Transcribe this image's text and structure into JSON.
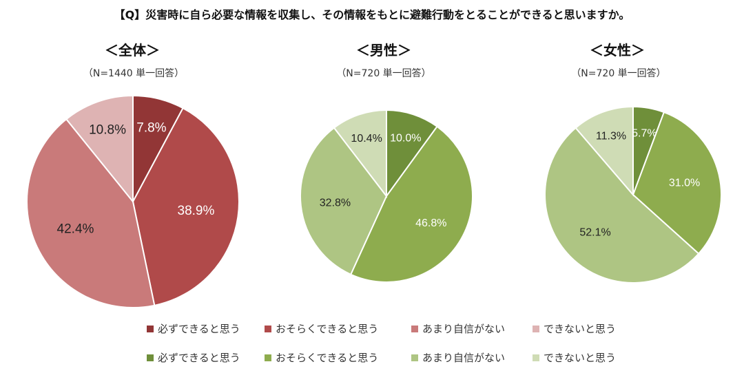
{
  "question": "【Q】災害時に自ら必要な情報を収集し、その情報をもとに避難行動をとることができると思いますか。",
  "chart_data": [
    {
      "type": "pie",
      "title": "＜全体＞",
      "subtitle": "（N=1440 単一回答）",
      "categories": [
        "必ずできると思う",
        "おそらくできると思う",
        "あまり自信がない",
        "できないと思う"
      ],
      "values": [
        7.8,
        38.9,
        42.4,
        10.8
      ],
      "labels": [
        "7.8%",
        "38.9%",
        "42.4%",
        "10.8%"
      ],
      "colors": [
        "#923636",
        "#b04a4a",
        "#c97a7a",
        "#deb3b3"
      ],
      "label_colors": [
        "#ffffff",
        "#ffffff",
        "#222222",
        "#222222"
      ]
    },
    {
      "type": "pie",
      "title": "＜男性＞",
      "subtitle": "（N=720 単一回答）",
      "categories": [
        "必ずできると思う",
        "おそらくできると思う",
        "あまり自信がない",
        "できないと思う"
      ],
      "values": [
        10.0,
        46.8,
        32.8,
        10.4
      ],
      "labels": [
        "10.0%",
        "46.8%",
        "32.8%",
        "10.4%"
      ],
      "colors": [
        "#6f8f3a",
        "#8eac4e",
        "#aec583",
        "#cfdcb5"
      ],
      "label_colors": [
        "#ffffff",
        "#ffffff",
        "#222222",
        "#222222"
      ]
    },
    {
      "type": "pie",
      "title": "＜女性＞",
      "subtitle": "（N=720 単一回答）",
      "categories": [
        "必ずできると思う",
        "おそらくできると思う",
        "あまり自信がない",
        "できないと思う"
      ],
      "values": [
        5.7,
        31.0,
        52.1,
        11.3
      ],
      "labels": [
        "5.7%",
        "31.0%",
        "52.1%",
        "11.3%"
      ],
      "colors": [
        "#6f8f3a",
        "#8eac4e",
        "#aec583",
        "#cfdcb5"
      ],
      "label_colors": [
        "#ffffff",
        "#ffffff",
        "#222222",
        "#222222"
      ]
    }
  ],
  "legend": {
    "row1": [
      {
        "label": "必ずできると思う",
        "color": "#923636"
      },
      {
        "label": "おそらくできると思う",
        "color": "#b04a4a"
      },
      {
        "label": "あまり自信がない",
        "color": "#c97a7a"
      },
      {
        "label": "できないと思う",
        "color": "#deb3b3"
      }
    ],
    "row2": [
      {
        "label": "必ずできると思う",
        "color": "#6f8f3a"
      },
      {
        "label": "おそらくできると思う",
        "color": "#8eac4e"
      },
      {
        "label": "あまり自信がない",
        "color": "#aec583"
      },
      {
        "label": "できないと思う",
        "color": "#cfdcb5"
      }
    ]
  }
}
